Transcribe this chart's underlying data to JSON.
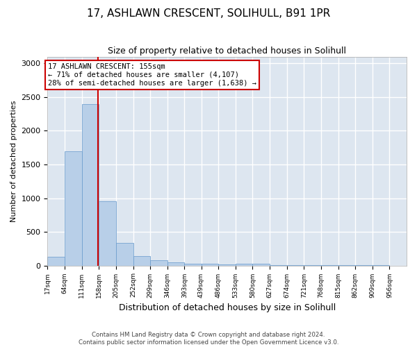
{
  "title": "17, ASHLAWN CRESCENT, SOLIHULL, B91 1PR",
  "subtitle": "Size of property relative to detached houses in Solihull",
  "xlabel": "Distribution of detached houses by size in Solihull",
  "ylabel": "Number of detached properties",
  "footer_line1": "Contains HM Land Registry data © Crown copyright and database right 2024.",
  "footer_line2": "Contains public sector information licensed under the Open Government Licence v3.0.",
  "annotation_title": "17 ASHLAWN CRESCENT: 155sqm",
  "annotation_line1": "← 71% of detached houses are smaller (4,107)",
  "annotation_line2": "28% of semi-detached houses are larger (1,638) →",
  "red_line_x": 155,
  "bar_edges": [
    17,
    64,
    111,
    158,
    205,
    252,
    299,
    346,
    393,
    439,
    486,
    533,
    580,
    627,
    674,
    721,
    768,
    815,
    862,
    909,
    956
  ],
  "bar_heights": [
    130,
    1700,
    2400,
    950,
    340,
    140,
    80,
    45,
    30,
    25,
    20,
    30,
    25,
    5,
    3,
    2,
    1,
    1,
    1,
    1
  ],
  "bar_color": "#b8cfe8",
  "bar_edgecolor": "#6699cc",
  "red_line_color": "#cc0000",
  "bg_color": "#dde6f0",
  "grid_color": "#ffffff",
  "ylim_max": 3100,
  "yticks": [
    0,
    500,
    1000,
    1500,
    2000,
    2500,
    3000
  ]
}
